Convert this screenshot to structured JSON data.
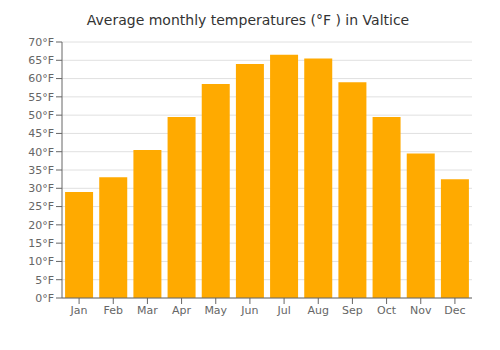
{
  "chart_data": {
    "type": "bar",
    "title": "Average monthly temperatures (°F ) in Valtice",
    "categories": [
      "Jan",
      "Feb",
      "Mar",
      "Apr",
      "May",
      "Jun",
      "Jul",
      "Aug",
      "Sep",
      "Oct",
      "Nov",
      "Dec"
    ],
    "values": [
      29,
      33,
      40.5,
      49.5,
      58.5,
      64,
      66.5,
      65.5,
      59,
      49.5,
      39.5,
      32.5
    ],
    "color": "#FFAA00",
    "ylim": [
      0,
      70
    ],
    "yticks": [
      {
        "value": 0,
        "label": "0°F"
      },
      {
        "value": 5,
        "label": "5°F"
      },
      {
        "value": 10,
        "label": "10°F"
      },
      {
        "value": 15,
        "label": "15°F"
      },
      {
        "value": 20,
        "label": "20°F"
      },
      {
        "value": 25,
        "label": "25°F"
      },
      {
        "value": 30,
        "label": "30°F"
      },
      {
        "value": 35,
        "label": "35°F"
      },
      {
        "value": 40,
        "label": "40°F"
      },
      {
        "value": 45,
        "label": "45°F"
      },
      {
        "value": 50,
        "label": "50°F"
      },
      {
        "value": 55,
        "label": "55°F"
      },
      {
        "value": 60,
        "label": "60°F"
      },
      {
        "value": 65,
        "label": "65°F"
      },
      {
        "value": 70,
        "label": "70°F"
      }
    ],
    "grid": true
  }
}
